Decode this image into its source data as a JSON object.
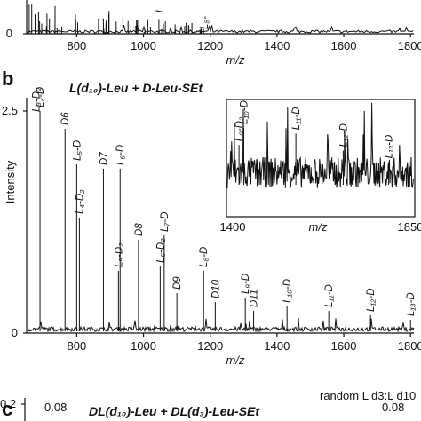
{
  "chart_data": [
    {
      "type": "spectrum",
      "xlabel": "m/z",
      "xlim": [
        650,
        1810
      ],
      "ylim": [
        0,
        1
      ],
      "xticks": [
        800,
        1000,
        1200,
        1400,
        1600,
        1800
      ],
      "yticks": [
        0
      ],
      "annotations": [
        "L",
        "L₈-"
      ]
    },
    {
      "type": "spectrum",
      "panel": "b",
      "title": "L(d₁₀)-Leu + D-Leu-SEt",
      "xlabel": "m/z",
      "ylabel": "Intensity",
      "xlim": [
        650,
        1810
      ],
      "ylim": [
        0,
        2.65
      ],
      "xticks": [
        800,
        1000,
        1200,
        1400,
        1600,
        1800
      ],
      "yticks": [
        0,
        2.5
      ],
      "x": [
        678,
        690,
        765,
        800,
        808,
        880,
        930,
        925,
        985,
        1050,
        1062,
        1100,
        1180,
        1215,
        1305,
        1330,
        1430,
        1555,
        1680,
        1800
      ],
      "values": [
        2.45,
        2.5,
        2.3,
        1.9,
        1.3,
        1.85,
        1.85,
        0.7,
        1.05,
        0.75,
        1.1,
        0.45,
        0.7,
        0.35,
        0.4,
        0.25,
        0.3,
        0.25,
        0.2,
        0.15
      ],
      "peak_labels": [
        "L₃-D₂",
        "L₄-D",
        "D6",
        "L₅-D",
        "L₄-D₂",
        "D7",
        "L₆-D",
        "L₅-D₂",
        "D8",
        "L₆-D₂",
        "L₇-D",
        "D9",
        "L₈-D",
        "D10",
        "L₉-D",
        "D11",
        "L₁₀-D",
        "L₁₁-D",
        "L₁₂-D",
        "L₁₃-D"
      ],
      "inset": {
        "xlabel": "m/z",
        "xlim": [
          1400,
          1850
        ],
        "ylim": [
          0,
          1
        ],
        "xticks": [
          1400,
          1850
        ],
        "x": [
          1416,
          1428,
          1560,
          1680,
          1795
        ],
        "values": [
          0.6,
          0.75,
          0.7,
          0.55,
          0.45
        ],
        "peak_labels": [
          "L₉-D₂",
          "L₁₀-D",
          "L₁₁-D",
          "L₁₂-D",
          "L₁₃-D"
        ]
      }
    },
    {
      "type": "spectrum",
      "panel": "c",
      "title": "DL(d₁₀)-Leu + DL(d₃)-Leu-SEt",
      "yticks": [
        0.2
      ],
      "annotations": [
        "0.08",
        "0.08",
        "random L d3:L d10"
      ]
    }
  ]
}
